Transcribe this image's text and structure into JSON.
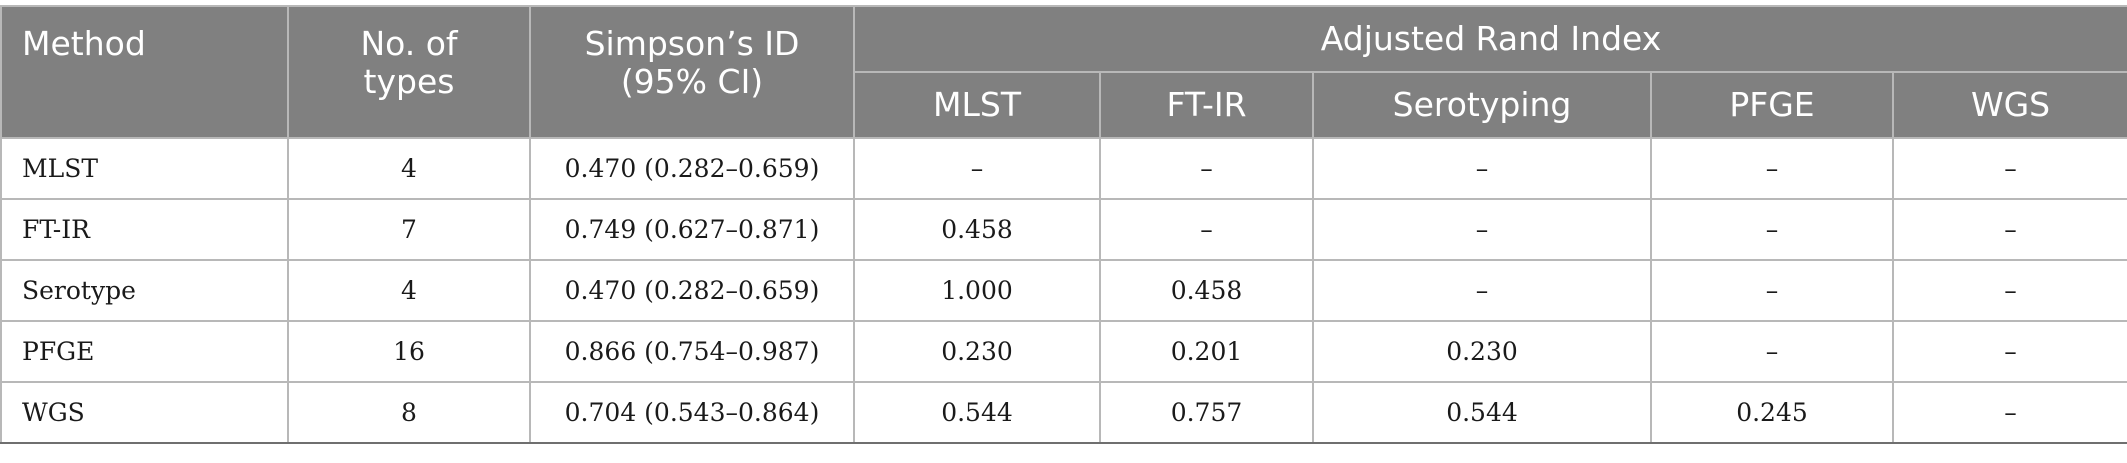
{
  "header": {
    "method": "Method",
    "types_line1": "No. of",
    "types_line2": "types",
    "simpson_line1": "Simpson’s ID",
    "simpson_line2": "(95% CI)",
    "ari": "Adjusted Rand Index",
    "sub": [
      "MLST",
      "FT-IR",
      "Serotyping",
      "PFGE",
      "WGS"
    ]
  },
  "rows": [
    {
      "method": "MLST",
      "types": "4",
      "simpson": "0.470 (0.282–0.659)",
      "ari": [
        "–",
        "–",
        "–",
        "–",
        "–"
      ]
    },
    {
      "method": "FT-IR",
      "types": "7",
      "simpson": "0.749 (0.627–0.871)",
      "ari": [
        "0.458",
        "–",
        "–",
        "–",
        "–"
      ]
    },
    {
      "method": "Serotype",
      "types": "4",
      "simpson": "0.470 (0.282–0.659)",
      "ari": [
        "1.000",
        "0.458",
        "–",
        "–",
        "–"
      ]
    },
    {
      "method": "PFGE",
      "types": "16",
      "simpson": "0.866 (0.754–0.987)",
      "ari": [
        "0.230",
        "0.201",
        "0.230",
        "–",
        "–"
      ]
    },
    {
      "method": "WGS",
      "types": "8",
      "simpson": "0.704 (0.543–0.864)",
      "ari": [
        "0.544",
        "0.757",
        "0.544",
        "0.245",
        "–"
      ]
    }
  ],
  "colors": {
    "header_bg": "#808080",
    "header_text": "#ffffff",
    "grid": "#b8b8b8"
  }
}
